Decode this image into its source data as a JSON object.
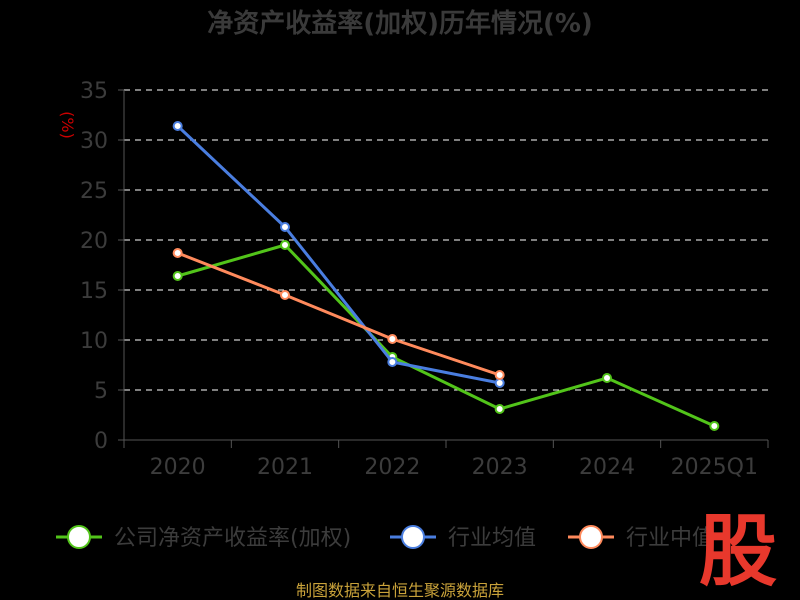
{
  "title": "净资产收益率(加权)历年情况(%)",
  "source_label": "制图数据来自恒生聚源数据库",
  "watermark_text": "股",
  "colors": {
    "background": "#000000",
    "gridline": "#ffffff",
    "axis": "#555555",
    "watermark": "#e8382c"
  },
  "chart_data": {
    "type": "line",
    "title": "净资产收益率(加权)历年情况(%)",
    "xlabel": "",
    "ylabel": "(%)",
    "categories": [
      "2020",
      "2021",
      "2022",
      "2023",
      "2024",
      "2025Q1"
    ],
    "ylim": [
      0,
      35
    ],
    "yticks": [
      0,
      5,
      10,
      15,
      20,
      25,
      30,
      35
    ],
    "grid": true,
    "legend_position": "bottom",
    "series": [
      {
        "name": "公司净资产收益率(加权)",
        "color": "#52c41a",
        "values": [
          16.4,
          19.5,
          8.3,
          3.1,
          6.2,
          1.4
        ]
      },
      {
        "name": "行业均值",
        "color": "#4a7ee0",
        "values": [
          31.4,
          21.3,
          7.8,
          5.7,
          null,
          null
        ]
      },
      {
        "name": "行业中值",
        "color": "#ff8a5c",
        "values": [
          18.7,
          14.5,
          10.1,
          6.5,
          null,
          null
        ]
      }
    ]
  }
}
